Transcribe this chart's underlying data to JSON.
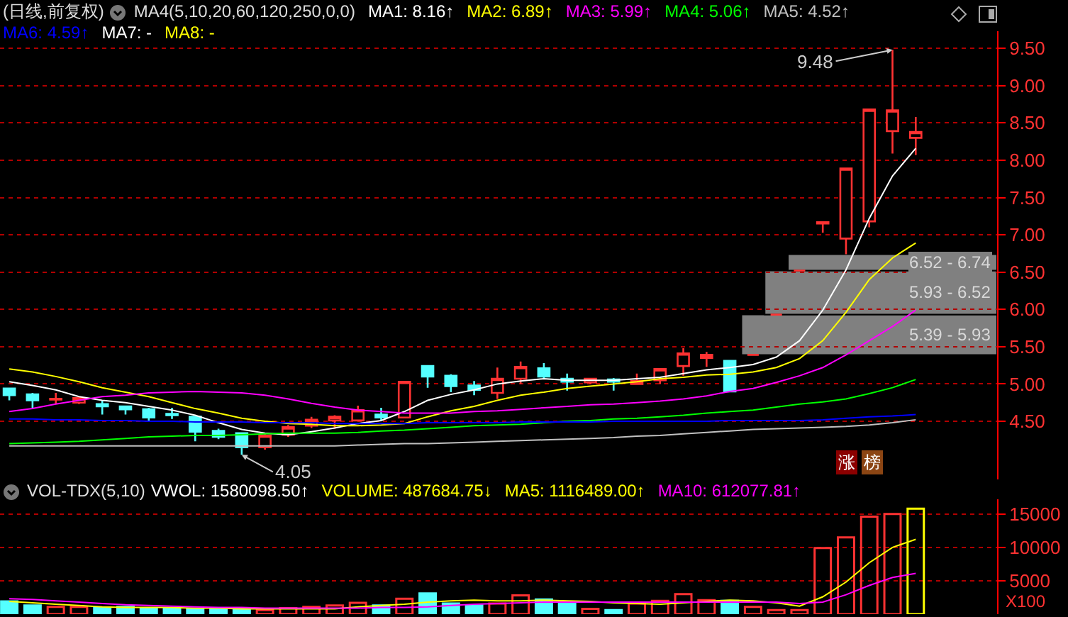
{
  "chart_data": [
    {
      "type": "candlestick",
      "title": "(日线,前复权)",
      "subtitle": "MA4(5,10,20,60,120,250,0,0)",
      "categories": [
        null,
        null,
        null,
        null,
        null,
        null,
        null,
        null,
        null,
        null,
        null,
        null,
        null,
        null,
        null,
        null,
        null,
        null,
        null,
        null,
        null,
        null,
        null,
        null,
        null,
        null,
        null,
        null,
        null,
        null,
        null,
        null,
        null,
        null,
        null,
        null,
        null,
        null,
        null,
        null
      ],
      "ohlc": [
        [
          4.94,
          4.95,
          4.78,
          4.85
        ],
        [
          4.86,
          4.88,
          4.68,
          4.78
        ],
        [
          4.79,
          4.88,
          4.73,
          4.8
        ],
        [
          4.75,
          4.83,
          4.73,
          4.81
        ],
        [
          4.73,
          4.78,
          4.59,
          4.7
        ],
        [
          4.7,
          4.7,
          4.59,
          4.66
        ],
        [
          4.66,
          4.68,
          4.51,
          4.55
        ],
        [
          4.6,
          4.68,
          4.53,
          4.58
        ],
        [
          4.56,
          4.56,
          4.23,
          4.36
        ],
        [
          4.37,
          4.4,
          4.26,
          4.29
        ],
        [
          4.34,
          4.34,
          4.05,
          4.15
        ],
        [
          4.15,
          4.34,
          4.12,
          4.31
        ],
        [
          4.32,
          4.45,
          4.29,
          4.42
        ],
        [
          4.44,
          4.56,
          4.41,
          4.52
        ],
        [
          4.51,
          4.58,
          4.4,
          4.56
        ],
        [
          4.51,
          4.71,
          4.5,
          4.65
        ],
        [
          4.59,
          4.68,
          4.51,
          4.55
        ],
        [
          4.55,
          5.03,
          4.55,
          5.03
        ],
        [
          5.24,
          5.24,
          4.95,
          5.1
        ],
        [
          5.11,
          5.13,
          4.89,
          4.97
        ],
        [
          4.98,
          5.04,
          4.85,
          4.92
        ],
        [
          4.88,
          5.22,
          4.8,
          5.07
        ],
        [
          5.07,
          5.3,
          5.0,
          5.23
        ],
        [
          5.21,
          5.28,
          5.08,
          5.1
        ],
        [
          5.07,
          5.14,
          4.91,
          5.03
        ],
        [
          5.02,
          5.08,
          5.0,
          5.07
        ],
        [
          5.06,
          5.08,
          4.91,
          5.03
        ],
        [
          5.0,
          5.14,
          4.99,
          5.04
        ],
        [
          5.05,
          5.2,
          5.0,
          5.2
        ],
        [
          5.24,
          5.48,
          5.11,
          5.41
        ],
        [
          5.35,
          5.43,
          5.23,
          5.39
        ],
        [
          5.31,
          5.31,
          4.89,
          4.9
        ],
        [
          5.39,
          5.39,
          5.39,
          5.39
        ],
        [
          5.93,
          5.93,
          5.93,
          5.93
        ],
        [
          6.52,
          6.52,
          6.52,
          6.52
        ],
        [
          7.15,
          7.17,
          7.03,
          7.17
        ],
        [
          6.95,
          7.89,
          6.74,
          7.89
        ],
        [
          7.18,
          8.68,
          7.1,
          8.68
        ],
        [
          8.39,
          9.48,
          8.09,
          8.67
        ],
        [
          8.3,
          8.58,
          8.07,
          8.38
        ]
      ],
      "series": [
        {
          "type": "line",
          "name": "MA1: 8.16↑",
          "color": "#ffffff",
          "values": [
            5.03,
            4.98,
            4.92,
            4.83,
            4.78,
            4.75,
            4.7,
            4.65,
            4.58,
            4.48,
            4.39,
            4.34,
            4.32,
            4.36,
            4.41,
            4.47,
            4.51,
            4.63,
            4.78,
            4.86,
            4.92,
            5.0,
            5.04,
            5.07,
            5.05,
            5.05,
            5.05,
            5.07,
            5.09,
            5.14,
            5.19,
            5.22,
            5.26,
            5.36,
            5.58,
            5.99,
            6.53,
            7.22,
            7.79,
            8.16
          ]
        },
        {
          "type": "line",
          "name": "MA2: 6.89↑",
          "color": "#ffff00",
          "values": [
            5.2,
            5.16,
            5.1,
            5.03,
            4.95,
            4.89,
            4.83,
            4.75,
            4.67,
            4.61,
            4.54,
            4.5,
            4.47,
            4.46,
            4.44,
            4.44,
            4.45,
            4.47,
            4.56,
            4.64,
            4.7,
            4.78,
            4.85,
            4.89,
            4.94,
            4.97,
            5.0,
            5.03,
            5.07,
            5.09,
            5.12,
            5.13,
            5.16,
            5.22,
            5.34,
            5.58,
            5.96,
            6.4,
            6.69,
            6.89
          ]
        },
        {
          "type": "line",
          "name": "MA3: 5.99↑",
          "color": "#ff00ff",
          "values": [
            4.63,
            4.67,
            4.73,
            4.78,
            4.83,
            4.85,
            4.88,
            4.89,
            4.9,
            4.89,
            4.88,
            4.85,
            4.8,
            4.74,
            4.69,
            4.65,
            4.63,
            4.61,
            4.61,
            4.61,
            4.63,
            4.64,
            4.66,
            4.68,
            4.7,
            4.72,
            4.73,
            4.75,
            4.77,
            4.8,
            4.84,
            4.9,
            4.94,
            5.02,
            5.11,
            5.22,
            5.39,
            5.58,
            5.77,
            5.99
          ]
        },
        {
          "type": "line",
          "name": "MA4: 5.06↑",
          "color": "#00ff00",
          "values": [
            4.2,
            4.21,
            4.22,
            4.23,
            4.25,
            4.27,
            4.29,
            4.3,
            4.31,
            4.31,
            4.32,
            4.33,
            4.34,
            4.34,
            4.34,
            4.35,
            4.37,
            4.38,
            4.4,
            4.42,
            4.44,
            4.45,
            4.46,
            4.48,
            4.5,
            4.51,
            4.53,
            4.54,
            4.56,
            4.58,
            4.61,
            4.63,
            4.65,
            4.69,
            4.73,
            4.76,
            4.8,
            4.87,
            4.95,
            5.06
          ]
        },
        {
          "type": "line",
          "name": "MA5: 4.52↑",
          "color": "#c0c0c0",
          "values": [
            4.17,
            4.17,
            4.17,
            4.17,
            4.17,
            4.17,
            4.17,
            4.17,
            4.17,
            4.17,
            4.17,
            4.17,
            4.17,
            4.17,
            4.17,
            4.18,
            4.19,
            4.2,
            4.2,
            4.21,
            4.22,
            4.23,
            4.24,
            4.25,
            4.26,
            4.27,
            4.28,
            4.3,
            4.31,
            4.33,
            4.35,
            4.37,
            4.39,
            4.4,
            4.41,
            4.42,
            4.43,
            4.45,
            4.48,
            4.52
          ]
        },
        {
          "type": "line",
          "name": "MA6: 4.59↑",
          "color": "#0000ff",
          "values": [
            4.53,
            4.53,
            4.52,
            4.52,
            4.51,
            4.51,
            4.5,
            4.5,
            4.49,
            4.49,
            4.49,
            4.48,
            4.48,
            4.48,
            4.47,
            4.47,
            4.47,
            4.47,
            4.48,
            4.48,
            4.48,
            4.48,
            4.49,
            4.49,
            4.49,
            4.49,
            4.5,
            4.5,
            4.5,
            4.5,
            4.5,
            4.51,
            4.51,
            4.51,
            4.51,
            4.52,
            4.54,
            4.56,
            4.57,
            4.59
          ]
        }
      ],
      "ylim": [
        3.72,
        9.73
      ],
      "yticks": [
        {
          "value": 4.5,
          "label": "4.50"
        },
        {
          "value": 5,
          "label": "5.00"
        },
        {
          "value": 5.5,
          "label": "5.50"
        },
        {
          "value": 6,
          "label": "6.00"
        },
        {
          "value": 6.5,
          "label": "6.50"
        },
        {
          "value": 7,
          "label": "7.00"
        },
        {
          "value": 7.5,
          "label": "7.50"
        },
        {
          "value": 8,
          "label": "8.00"
        },
        {
          "value": 8.5,
          "label": "8.50"
        },
        {
          "value": 9,
          "label": "9.00"
        },
        {
          "value": 9.5,
          "label": "9.50"
        }
      ],
      "bands": [
        {
          "axis": "y",
          "from": 5.39,
          "to": 5.93,
          "label": "5.39 - 5.93",
          "color": "#808080"
        },
        {
          "axis": "y",
          "from": 5.93,
          "to": 6.52,
          "label": "5.93 - 6.52",
          "color": "#808080"
        },
        {
          "axis": "y",
          "from": 6.52,
          "to": 6.74,
          "label": "6.52 - 6.74",
          "color": "#808080"
        }
      ],
      "annotations": [
        "MA7: -",
        "MA8: -",
        "涨",
        "榜",
        "9.48",
        "4.05"
      ],
      "grid": "y",
      "legend": "top left"
    },
    {
      "type": "bar",
      "title": "VOL-TDX(5,10)",
      "ylabel": "X100",
      "categories": [
        null,
        null,
        null,
        null,
        null,
        null,
        null,
        null,
        null,
        null,
        null,
        null,
        null,
        null,
        null,
        null,
        null,
        null,
        null,
        null,
        null,
        null,
        null,
        null,
        null,
        null,
        null,
        null,
        null,
        null,
        null,
        null,
        null,
        null,
        null,
        null,
        null,
        null,
        null,
        null
      ],
      "series": [
        {
          "type": "bar",
          "values": [
            1900,
            1300,
            1100,
            1100,
            900,
            1100,
            900,
            900,
            700,
            700,
            900,
            600,
            900,
            1100,
            1300,
            1700,
            1300,
            2300,
            3100,
            1600,
            1300,
            1600,
            2800,
            2200,
            1600,
            800,
            600,
            1600,
            2000,
            3000,
            2100,
            2000,
            1100,
            600,
            600,
            9900,
            11500,
            14600,
            15000,
            15800
          ],
          "colors": [
            "#54ffff",
            "#54ffff",
            "#ff3232",
            "#ff3232",
            "#54ffff",
            "#54ffff",
            "#54ffff",
            "#54ffff",
            "#54ffff",
            "#54ffff",
            "#54ffff",
            "#ff3232",
            "#ff3232",
            "#ff3232",
            "#ff3232",
            "#ff3232",
            "#54ffff",
            "#ff3232",
            "#54ffff",
            "#54ffff",
            "#54ffff",
            "#ff3232",
            "#ff3232",
            "#54ffff",
            "#54ffff",
            "#ff3232",
            "#54ffff",
            "#ff3232",
            "#ff3232",
            "#ff3232",
            "#ff3232",
            "#54ffff",
            "#ff3232",
            "#ff3232",
            "#ff3232",
            "#ff3232",
            "#ff3232",
            "#ff3232",
            "#ff3232",
            "#ffff00"
          ]
        },
        {
          "type": "line",
          "name": "MA5: 1116489.00↑",
          "color": "#ffff00",
          "values": [
            1900,
            1700,
            1500,
            1300,
            1100,
            1000,
            1000,
            1000,
            900,
            900,
            800,
            800,
            800,
            800,
            800,
            1100,
            1300,
            1500,
            1800,
            2000,
            2100,
            2000,
            2000,
            2100,
            2000,
            1900,
            1700,
            1600,
            1500,
            1700,
            1900,
            2100,
            2000,
            1700,
            1200,
            2600,
            4800,
            7700,
            10000,
            11200
          ]
        },
        {
          "type": "line",
          "name": "MA10: 612077.81↑",
          "color": "#ff00ff",
          "values": [
            2300,
            2200,
            2000,
            1800,
            1600,
            1400,
            1300,
            1200,
            1100,
            1000,
            1000,
            900,
            900,
            900,
            900,
            900,
            1000,
            1000,
            1100,
            1300,
            1500,
            1600,
            1700,
            1800,
            1800,
            1800,
            1800,
            1800,
            1800,
            1800,
            1800,
            1800,
            1800,
            1800,
            1600,
            1800,
            2900,
            4300,
            5500,
            6100
          ]
        }
      ],
      "ylim": [
        0,
        17200
      ],
      "yticks": [
        5000,
        10000,
        15000
      ],
      "annotations": [
        "VWOL: 1580098.50↑",
        "VOLUME: 487684.75↓"
      ],
      "grid": "y",
      "legend": "top"
    }
  ]
}
